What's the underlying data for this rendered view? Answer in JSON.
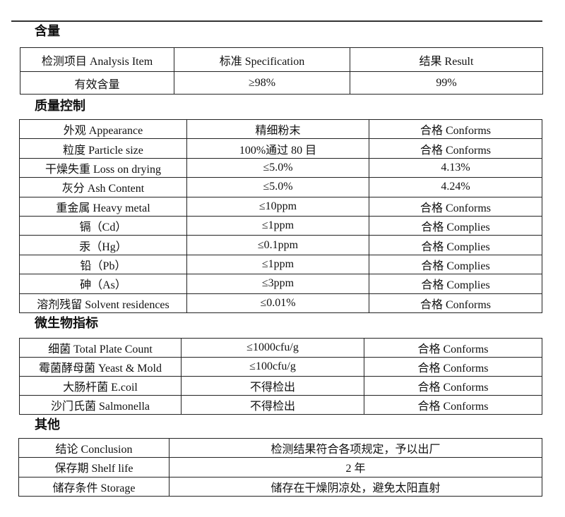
{
  "sections": {
    "content": {
      "title": "含量",
      "header": [
        "检测项目  Analysis Item",
        "标准    Specification",
        "结果  Result"
      ],
      "rows": [
        [
          "有效含量",
          "≥98%",
          "99%"
        ]
      ]
    },
    "quality": {
      "title": "质量控制",
      "rows": [
        [
          "外观 Appearance",
          "精细粉末",
          "合格 Conforms"
        ],
        [
          "粒度  Particle size",
          "100%通过 80 目",
          "合格 Conforms"
        ],
        [
          "干燥失重 Loss on drying",
          "≤5.0%",
          "4.13%"
        ],
        [
          "灰分 Ash Content",
          "≤5.0%",
          "4.24%"
        ],
        [
          "重金属  Heavy metal",
          "≤10ppm",
          "合格 Conforms"
        ],
        [
          "镉（Cd）",
          "≤1ppm",
          "合格 Complies"
        ],
        [
          "汞（Hg）",
          "≤0.1ppm",
          "合格 Complies"
        ],
        [
          "铅（Pb）",
          "≤1ppm",
          "合格 Complies"
        ],
        [
          "砷（As）",
          "≤3ppm",
          "合格 Complies"
        ],
        [
          "溶剂残留 Solvent residences",
          "≤0.01%",
          "合格 Conforms"
        ]
      ]
    },
    "micro": {
      "title": "微生物指标",
      "rows": [
        [
          "细菌  Total Plate Count",
          "≤1000cfu/g",
          "合格 Conforms"
        ],
        [
          "霉菌酵母菌  Yeast & Mold",
          "≤100cfu/g",
          "合格 Conforms"
        ],
        [
          "大肠杆菌    E.coil",
          "不得检出",
          "合格 Conforms"
        ],
        [
          "沙门氏菌    Salmonella",
          "不得检出",
          "合格 Conforms"
        ]
      ]
    },
    "other": {
      "title": "其他",
      "rows": [
        [
          "结论  Conclusion",
          "检测结果符合各项规定，予以出厂"
        ],
        [
          "保存期  Shelf life",
          "2 年"
        ],
        [
          "储存条件 Storage",
          "储存在干燥阴凉处，避免太阳直射"
        ]
      ]
    }
  }
}
